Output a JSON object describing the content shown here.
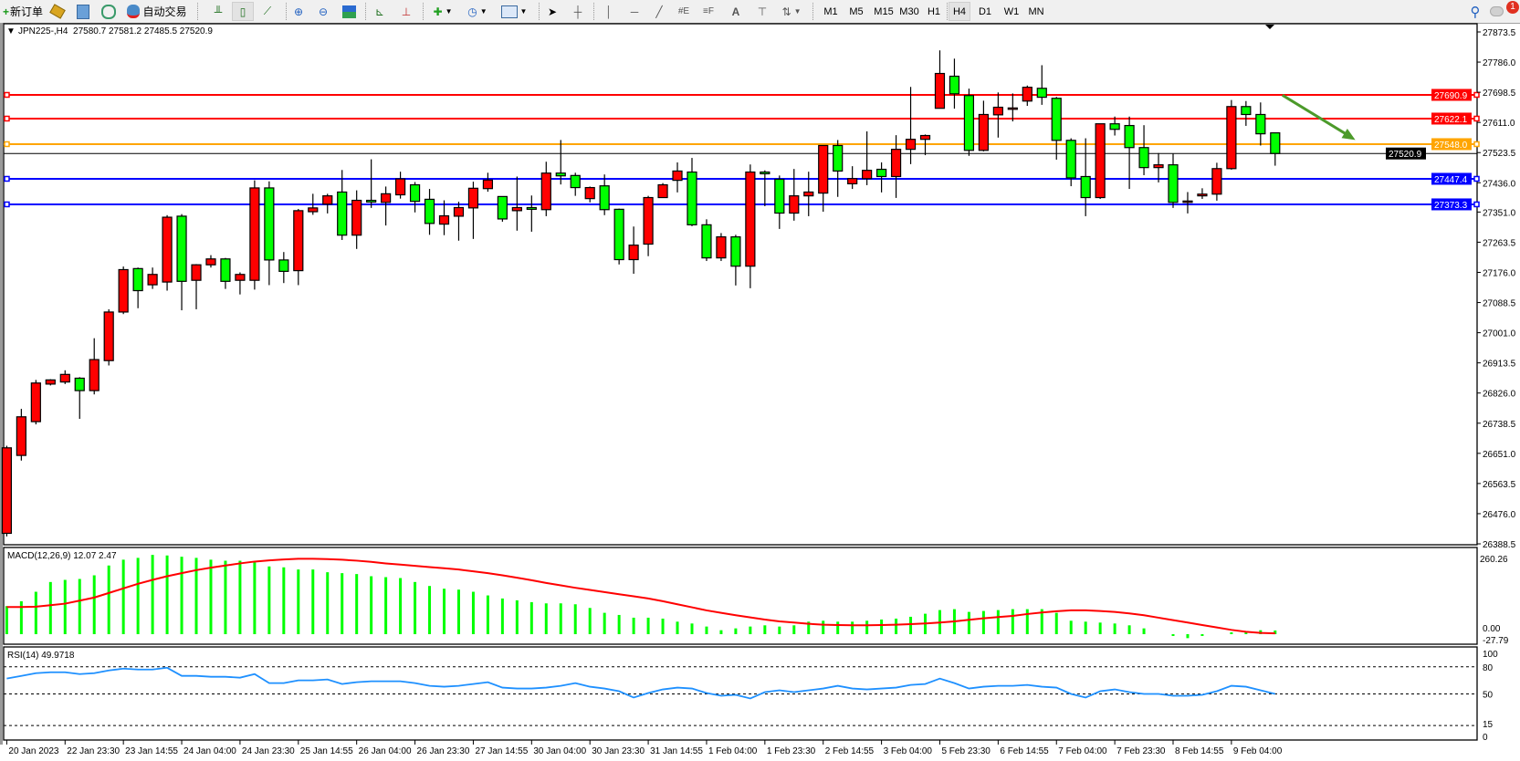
{
  "toolbar": {
    "new_order_label": "新订单",
    "auto_trading_label": "自动交易",
    "timeframes": [
      "M1",
      "M5",
      "M15",
      "M30",
      "H1",
      "H4",
      "D1",
      "W1",
      "MN"
    ],
    "active_timeframe": "H4",
    "notification_count": "1",
    "icons": [
      "new-order-icon",
      "market-watch-icon",
      "data-window-icon",
      "navigator-icon",
      "signals-icon",
      "auto-trading-icon",
      "bar-chart-icon",
      "candlestick-icon",
      "line-chart-icon",
      "zoom-in-icon",
      "zoom-out-icon",
      "tile-windows-icon",
      "auto-scroll-icon",
      "chart-shift-icon",
      "indicators-icon",
      "periods-icon",
      "templates-icon",
      "cursor-icon",
      "crosshair-icon",
      "vertical-line-icon",
      "horizontal-line-icon",
      "trendline-icon",
      "fibonacci-expansion-icon",
      "fibonacci-fan-icon",
      "text-icon",
      "text-label-icon",
      "arrows-icon",
      "search-icon",
      "notifications-icon"
    ]
  },
  "chart_header": "JPN225-,H4  27580.7 27581.2 27485.5 27520.9",
  "chart_data": [
    {
      "type": "candlestick",
      "symbol": "JPN225-",
      "timeframe": "H4",
      "up_color": "#ff0000",
      "down_color": "#00ff00",
      "ylim": [
        26388.5,
        27873.5
      ],
      "y_ticks": [
        "27873.5",
        "27786.0",
        "27698.5",
        "27611.0",
        "27523.5",
        "27436.0",
        "27351.0",
        "27263.5",
        "27176.0",
        "27088.5",
        "27001.0",
        "26913.5",
        "26826.0",
        "26738.5",
        "26651.0",
        "26563.5",
        "26476.0",
        "26388.5"
      ],
      "x_tick_labels": [
        "20 Jan 2023",
        "22 Jan 23:30",
        "23 Jan 14:55",
        "24 Jan 04:00",
        "24 Jan 23:30",
        "25 Jan 14:55",
        "26 Jan 04:00",
        "26 Jan 23:30",
        "27 Jan 14:55",
        "30 Jan 04:00",
        "30 Jan 23:30",
        "31 Jan 14:55",
        "1 Feb 04:00",
        "1 Feb 23:30",
        "2 Feb 14:55",
        "3 Feb 04:00",
        "5 Feb 23:30",
        "6 Feb 14:55",
        "7 Feb 04:00",
        "7 Feb 23:30",
        "8 Feb 14:55",
        "9 Feb 04:00"
      ],
      "x_tick_every_bars": 4,
      "ohlc": [
        [
          26419,
          26673,
          26410,
          26667
        ],
        [
          26645,
          26780,
          26630,
          26757
        ],
        [
          26743,
          26864,
          26735,
          26855
        ],
        [
          26852,
          26866,
          26848,
          26864
        ],
        [
          26858,
          26892,
          26852,
          26880
        ],
        [
          26869,
          26872,
          26751,
          26833
        ],
        [
          26833,
          26985,
          26822,
          26923
        ],
        [
          26920,
          27069,
          26906,
          27061
        ],
        [
          27061,
          27193,
          27055,
          27184
        ],
        [
          27187,
          27190,
          27072,
          27123
        ],
        [
          27140,
          27190,
          27128,
          27170
        ],
        [
          27148,
          27342,
          27123,
          27336
        ],
        [
          27339,
          27345,
          27066,
          27150
        ],
        [
          27153,
          27200,
          27069,
          27198
        ],
        [
          27198,
          27226,
          27190,
          27215
        ],
        [
          27215,
          27218,
          27128,
          27150
        ],
        [
          27153,
          27176,
          27112,
          27170
        ],
        [
          27153,
          27443,
          27126,
          27421
        ],
        [
          27421,
          27440,
          27139,
          27212
        ],
        [
          27212,
          27235,
          27145,
          27179
        ],
        [
          27181,
          27360,
          27139,
          27355
        ],
        [
          27352,
          27404,
          27343,
          27363
        ],
        [
          27374,
          27404,
          27347,
          27398
        ],
        [
          27409,
          27473,
          27270,
          27284
        ],
        [
          27284,
          27414,
          27244,
          27385
        ],
        [
          27385,
          27504,
          27363,
          27380
        ],
        [
          27379,
          27425,
          27312,
          27404
        ],
        [
          27401,
          27468,
          27390,
          27447
        ],
        [
          27430,
          27438,
          27350,
          27382
        ],
        [
          27388,
          27418,
          27285,
          27318
        ],
        [
          27316,
          27385,
          27284,
          27340
        ],
        [
          27339,
          27381,
          27268,
          27364
        ],
        [
          27363,
          27439,
          27273,
          27420
        ],
        [
          27419,
          27465,
          27410,
          27444
        ],
        [
          27396,
          27396,
          27323,
          27331
        ],
        [
          27355,
          27454,
          27297,
          27364
        ],
        [
          27364,
          27399,
          27294,
          27359
        ],
        [
          27358,
          27497,
          27339,
          27464
        ],
        [
          27464,
          27560,
          27431,
          27456
        ],
        [
          27457,
          27465,
          27398,
          27422
        ],
        [
          27390,
          27425,
          27379,
          27422
        ],
        [
          27427,
          27460,
          27342,
          27358
        ],
        [
          27359,
          27361,
          27199,
          27213
        ],
        [
          27213,
          27309,
          27172,
          27255
        ],
        [
          27258,
          27398,
          27223,
          27393
        ],
        [
          27393,
          27435,
          27393,
          27430
        ],
        [
          27443,
          27495,
          27408,
          27470
        ],
        [
          27467,
          27508,
          27310,
          27314
        ],
        [
          27314,
          27330,
          27209,
          27218
        ],
        [
          27218,
          27290,
          27209,
          27279
        ],
        [
          27279,
          27285,
          27138,
          27194
        ],
        [
          27194,
          27489,
          27130,
          27467
        ],
        [
          27467,
          27472,
          27368,
          27462
        ],
        [
          27446,
          27457,
          27302,
          27348
        ],
        [
          27348,
          27476,
          27326,
          27398
        ],
        [
          27398,
          27468,
          27339,
          27409
        ],
        [
          27406,
          27544,
          27352,
          27544
        ],
        [
          27544,
          27560,
          27395,
          27470
        ],
        [
          27433,
          27484,
          27418,
          27448
        ],
        [
          27448,
          27585,
          27429,
          27472
        ],
        [
          27475,
          27495,
          27408,
          27454
        ],
        [
          27454,
          27574,
          27392,
          27533
        ],
        [
          27533,
          27714,
          27490,
          27562
        ],
        [
          27562,
          27576,
          27516,
          27573
        ],
        [
          27652,
          27820,
          27652,
          27753
        ],
        [
          27745,
          27796,
          27651,
          27694
        ],
        [
          27689,
          27709,
          27514,
          27530
        ],
        [
          27530,
          27674,
          27527,
          27634
        ],
        [
          27633,
          27698,
          27567,
          27655
        ],
        [
          27653,
          27695,
          27614,
          27653
        ],
        [
          27673,
          27718,
          27659,
          27713
        ],
        [
          27710,
          27777,
          27662,
          27684
        ],
        [
          27681,
          27685,
          27503,
          27559
        ],
        [
          27559,
          27565,
          27426,
          27450
        ],
        [
          27454,
          27565,
          27339,
          27393
        ],
        [
          27393,
          27607,
          27389,
          27607
        ],
        [
          27607,
          27628,
          27573,
          27591
        ],
        [
          27602,
          27628,
          27418,
          27538
        ],
        [
          27538,
          27603,
          27458,
          27480
        ],
        [
          27480,
          27522,
          27437,
          27488
        ],
        [
          27488,
          27520,
          27363,
          27379
        ],
        [
          27383,
          27409,
          27347,
          27383
        ],
        [
          27398,
          27420,
          27389,
          27403
        ],
        [
          27403,
          27494,
          27384,
          27477
        ],
        [
          27477,
          27676,
          27474,
          27657
        ],
        [
          27657,
          27673,
          27601,
          27634
        ],
        [
          27634,
          27669,
          27544,
          27578
        ],
        [
          27580.7,
          27581.2,
          27485.5,
          27520.9
        ]
      ],
      "horizontal_lines": [
        {
          "price": "27690.9",
          "color": "#ff0000"
        },
        {
          "price": "27622.1",
          "color": "#ff0000"
        },
        {
          "price": "27548.0",
          "color": "#ffa500"
        },
        {
          "price": "27447.4",
          "color": "#0000ff"
        },
        {
          "price": "27373.3",
          "color": "#0000ff"
        }
      ],
      "current_price": "27520.9",
      "annotation_arrow": {
        "from": {
          "bar": 87.5,
          "price": 27690
        },
        "to": {
          "bar": 92.5,
          "price": 27560
        },
        "color": "#4c9a2a"
      }
    },
    {
      "type": "bar+line",
      "label": "MACD(12,26,9) 12.07 2.47",
      "ylim": [
        -27.79,
        260.26
      ],
      "y_ticks": [
        "260.26",
        "0.00",
        "-27.79"
      ],
      "histogram_color": "#00ff00",
      "signal_color": "#ff0000",
      "macd": [
        92,
        108,
        139,
        171,
        178,
        181,
        193,
        225,
        244,
        250,
        260,
        258,
        254,
        250,
        244,
        241,
        241,
        235,
        222,
        219,
        212,
        212,
        203,
        200,
        197,
        190,
        187,
        184,
        171,
        158,
        149,
        146,
        139,
        127,
        117,
        111,
        105,
        101,
        101,
        98,
        86,
        70,
        63,
        54,
        54,
        51,
        41,
        35,
        25,
        13,
        19,
        25,
        29,
        25,
        29,
        41,
        44,
        41,
        41,
        44,
        48,
        51,
        57,
        67,
        79,
        82,
        73,
        76,
        79,
        82,
        82,
        82,
        70,
        44,
        41,
        38,
        35,
        29,
        19,
        0,
        -6,
        -13,
        -6,
        0,
        6,
        10,
        13,
        12.07
      ],
      "signal": [
        89,
        89,
        90,
        95,
        100,
        110,
        120,
        135,
        150,
        165,
        178,
        190,
        200,
        210,
        218,
        225,
        232,
        238,
        242,
        245,
        247,
        247,
        246,
        244,
        241,
        237,
        232,
        228,
        224,
        220,
        216,
        212,
        206,
        200,
        193,
        185,
        177,
        168,
        160,
        152,
        145,
        138,
        131,
        124,
        117,
        108,
        98,
        88,
        78,
        70,
        62,
        55,
        48,
        42,
        38,
        34,
        31,
        30,
        29,
        29,
        30,
        31,
        33,
        35,
        38,
        42,
        47,
        52,
        56,
        60,
        66,
        71,
        75,
        78,
        78,
        76,
        73,
        68,
        62,
        54,
        46,
        38,
        30,
        22,
        14,
        8,
        4,
        2.47
      ]
    },
    {
      "type": "line",
      "label": "RSI(14) 49.9718",
      "ylim": [
        0,
        100
      ],
      "y_ticks": [
        "100",
        "80",
        "50",
        "15",
        "0"
      ],
      "levels": [
        80,
        50,
        15
      ],
      "color": "#1e90ff",
      "values": [
        67,
        70,
        73,
        74,
        74,
        72,
        73,
        76,
        78,
        77,
        77,
        79,
        70,
        70,
        69,
        69,
        68,
        72,
        62,
        62,
        65,
        65,
        66,
        61,
        63,
        64,
        64,
        64,
        62,
        59,
        58,
        59,
        61,
        63,
        57,
        56,
        56,
        57,
        59,
        62,
        58,
        56,
        53,
        46,
        51,
        55,
        57,
        56,
        51,
        48,
        49,
        45,
        52,
        54,
        52,
        54,
        56,
        59,
        56,
        55,
        56,
        57,
        60,
        61,
        67,
        62,
        56,
        58,
        59,
        59,
        60,
        58,
        57,
        50,
        46,
        53,
        55,
        52,
        50,
        50,
        48,
        48,
        49,
        53,
        59,
        58,
        54,
        49.9718
      ]
    }
  ]
}
